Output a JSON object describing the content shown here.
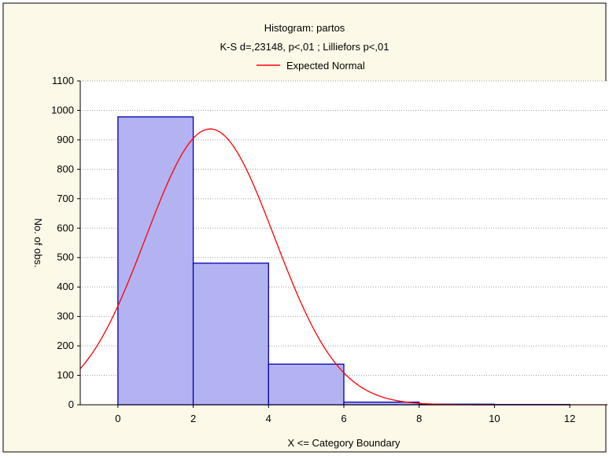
{
  "chart_data": {
    "type": "bar",
    "title": "Histogram: partos",
    "subtitle": "K-S d=,23148, p<,01 ; Lilliefors p<,01",
    "xlabel": "X <= Category Boundary",
    "ylabel": "No. of obs.",
    "xlim": [
      -1,
      13
    ],
    "ylim": [
      0,
      1100
    ],
    "x_ticks": [
      0,
      2,
      4,
      6,
      8,
      10,
      12
    ],
    "y_ticks": [
      0,
      100,
      200,
      300,
      400,
      500,
      600,
      700,
      800,
      900,
      1000,
      1100
    ],
    "grid": true,
    "legend_position": "top-center",
    "bins": [
      {
        "from": 0,
        "to": 2,
        "value": 978
      },
      {
        "from": 2,
        "to": 4,
        "value": 481
      },
      {
        "from": 4,
        "to": 6,
        "value": 138
      },
      {
        "from": 6,
        "to": 8,
        "value": 9
      },
      {
        "from": 8,
        "to": 10,
        "value": 2
      },
      {
        "from": 10,
        "to": 12,
        "value": 1
      }
    ],
    "series": [
      {
        "name": "Expected Normal",
        "type": "curve",
        "mean": 2.45,
        "sd": 1.71,
        "peak": 937,
        "color": "#ff0000"
      }
    ],
    "colors": {
      "background": "#fdf9e8",
      "plot_background": "#ffffff",
      "bar_fill": "#b3b3f2",
      "bar_stroke": "#0000b4",
      "grid": "#a0a0a0"
    }
  }
}
